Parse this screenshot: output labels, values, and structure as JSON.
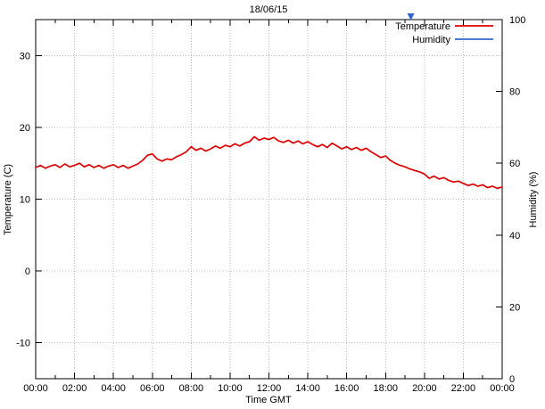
{
  "chart_data": {
    "type": "line",
    "title": "18/06/15",
    "xlabel": "Time GMT",
    "ylabel_left": "Temperature (C)",
    "ylabel_right": "Humidity (%)",
    "x_range_hours": [
      0,
      24
    ],
    "x_tick_labels": [
      "00:00",
      "02:00",
      "04:00",
      "06:00",
      "08:00",
      "10:00",
      "12:00",
      "14:00",
      "16:00",
      "18:00",
      "20:00",
      "22:00",
      "00:00"
    ],
    "x_tick_hours": [
      0,
      2,
      4,
      6,
      8,
      10,
      12,
      14,
      16,
      18,
      20,
      22,
      24
    ],
    "x_minor_tick_every_hours": 1,
    "y_left_range": [
      -15,
      35
    ],
    "y_left_ticks": [
      -10,
      0,
      10,
      20,
      30
    ],
    "y_right_range": [
      0,
      100
    ],
    "y_right_ticks": [
      0,
      20,
      40,
      60,
      80,
      100
    ],
    "grid": true,
    "grid_color": "#b9b9b9",
    "axis_color": "#000000",
    "legend_position": "top-right",
    "legend": [
      {
        "name": "Temperature",
        "color": "#dd0000"
      },
      {
        "name": "Humidity",
        "color": "#3366cc"
      }
    ],
    "series": [
      {
        "name": "Temperature",
        "axis": "left",
        "color": "#dd0000",
        "interval_minutes": 15,
        "start_hour": 0,
        "values": [
          14.4,
          14.7,
          14.3,
          14.6,
          14.8,
          14.4,
          14.9,
          14.5,
          14.7,
          15.0,
          14.5,
          14.8,
          14.4,
          14.7,
          14.3,
          14.6,
          14.8,
          14.4,
          14.7,
          14.3,
          14.6,
          14.9,
          15.4,
          16.1,
          16.3,
          15.6,
          15.3,
          15.6,
          15.5,
          15.9,
          16.2,
          16.6,
          17.3,
          16.8,
          17.1,
          16.7,
          17.0,
          17.4,
          17.1,
          17.5,
          17.3,
          17.7,
          17.4,
          17.8,
          18.0,
          18.7,
          18.2,
          18.5,
          18.3,
          18.6,
          18.1,
          17.9,
          18.2,
          17.8,
          18.1,
          17.7,
          18.0,
          17.6,
          17.3,
          17.6,
          17.2,
          17.8,
          17.4,
          17.0,
          17.3,
          16.9,
          17.2,
          16.8,
          17.1,
          16.6,
          16.2,
          15.8,
          16.0,
          15.4,
          15.0,
          14.7,
          14.5,
          14.2,
          14.0,
          13.8,
          13.5,
          12.9,
          13.2,
          12.8,
          13.0,
          12.6,
          12.4,
          12.5,
          12.2,
          11.9,
          12.1,
          11.8,
          12.0,
          11.6,
          11.8,
          11.5,
          11.7
        ]
      },
      {
        "name": "Humidity",
        "axis": "right",
        "color": "#3366cc",
        "values": []
      }
    ],
    "humidity_marker": {
      "hour": 19.3
    }
  }
}
